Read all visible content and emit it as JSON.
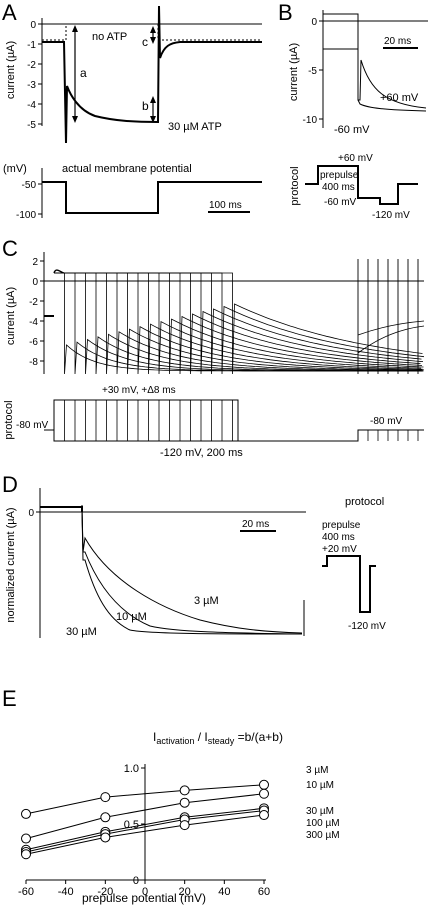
{
  "panels": {
    "A": {
      "letter": "A",
      "ylabel": "current (µA)",
      "yticks": [
        "0",
        "-1",
        "-2",
        "-3",
        "-4",
        "-5"
      ],
      "no_atp": "no ATP",
      "atp": "30 µM ATP",
      "mark_a": "a",
      "mark_b": "b",
      "mark_c": "c",
      "mp_label": "actual membrane potential",
      "mp_ylabel": "(mV)",
      "mp_yticks": [
        "-50",
        "-100"
      ],
      "scalebar": "100 ms"
    },
    "B": {
      "letter": "B",
      "ylabel": "current (µA)",
      "yticks": [
        "0",
        "-5",
        "-10"
      ],
      "scalebar": "20 ms",
      "trace_p60": "+60 mV",
      "trace_m60": "-60 mV",
      "protocol": "protocol",
      "p_top": "+60 mV",
      "p_prepulse": "prepulse",
      "p_dur": "400 ms",
      "p_m60": "-60 mV",
      "p_m120": "-120 mV"
    },
    "C": {
      "letter": "C",
      "ylabel": "current (µA)",
      "yticks": [
        "2",
        "0",
        "-2",
        "-4",
        "-6",
        "-8"
      ],
      "protocol": "protocol",
      "p_top": "+30 mV, +Δ8 ms",
      "p_left": "-80 mV",
      "p_right": "-80 mV",
      "p_bottom": "-120 mV, 200 ms"
    },
    "D": {
      "letter": "D",
      "ylabel": "normalized current (µA)",
      "ytick": "0",
      "scalebar": "20 ms",
      "c3": "3 µM",
      "c10": "10 µM",
      "c30": "30 µM",
      "protocol": "protocol",
      "p_prepulse": "prepulse",
      "p_dur": "400 ms",
      "p_top": "+20 mV",
      "p_bottom": "-120 mV"
    },
    "E": {
      "letter": "E",
      "ratio_main": "I",
      "ratio_sub1": "activation",
      "ratio_sep": " / I",
      "ratio_sub2": "steady",
      "ratio_rest": " =b/(a+b)",
      "xlabel": "prepulse potential (mV)"
    }
  },
  "chart_data": {
    "type": "scatter",
    "x": [
      -60,
      -20,
      20,
      60
    ],
    "xticks": [
      "-60",
      "-40",
      "-20",
      "0",
      "20",
      "40",
      "60"
    ],
    "yticks": [
      "1.0",
      "0.5",
      "0"
    ],
    "xlim": [
      -60,
      60
    ],
    "ylim": [
      0,
      1.0
    ],
    "series": [
      {
        "name": "3 µM",
        "values": [
          0.59,
          0.74,
          0.8,
          0.85
        ]
      },
      {
        "name": "10 µM",
        "values": [
          0.37,
          0.56,
          0.69,
          0.77
        ]
      },
      {
        "name": "30 µM",
        "values": [
          0.27,
          0.43,
          0.56,
          0.64
        ]
      },
      {
        "name": "100 µM",
        "values": [
          0.25,
          0.41,
          0.54,
          0.62
        ]
      },
      {
        "name": "300 µM",
        "values": [
          0.23,
          0.38,
          0.49,
          0.58
        ]
      }
    ]
  }
}
